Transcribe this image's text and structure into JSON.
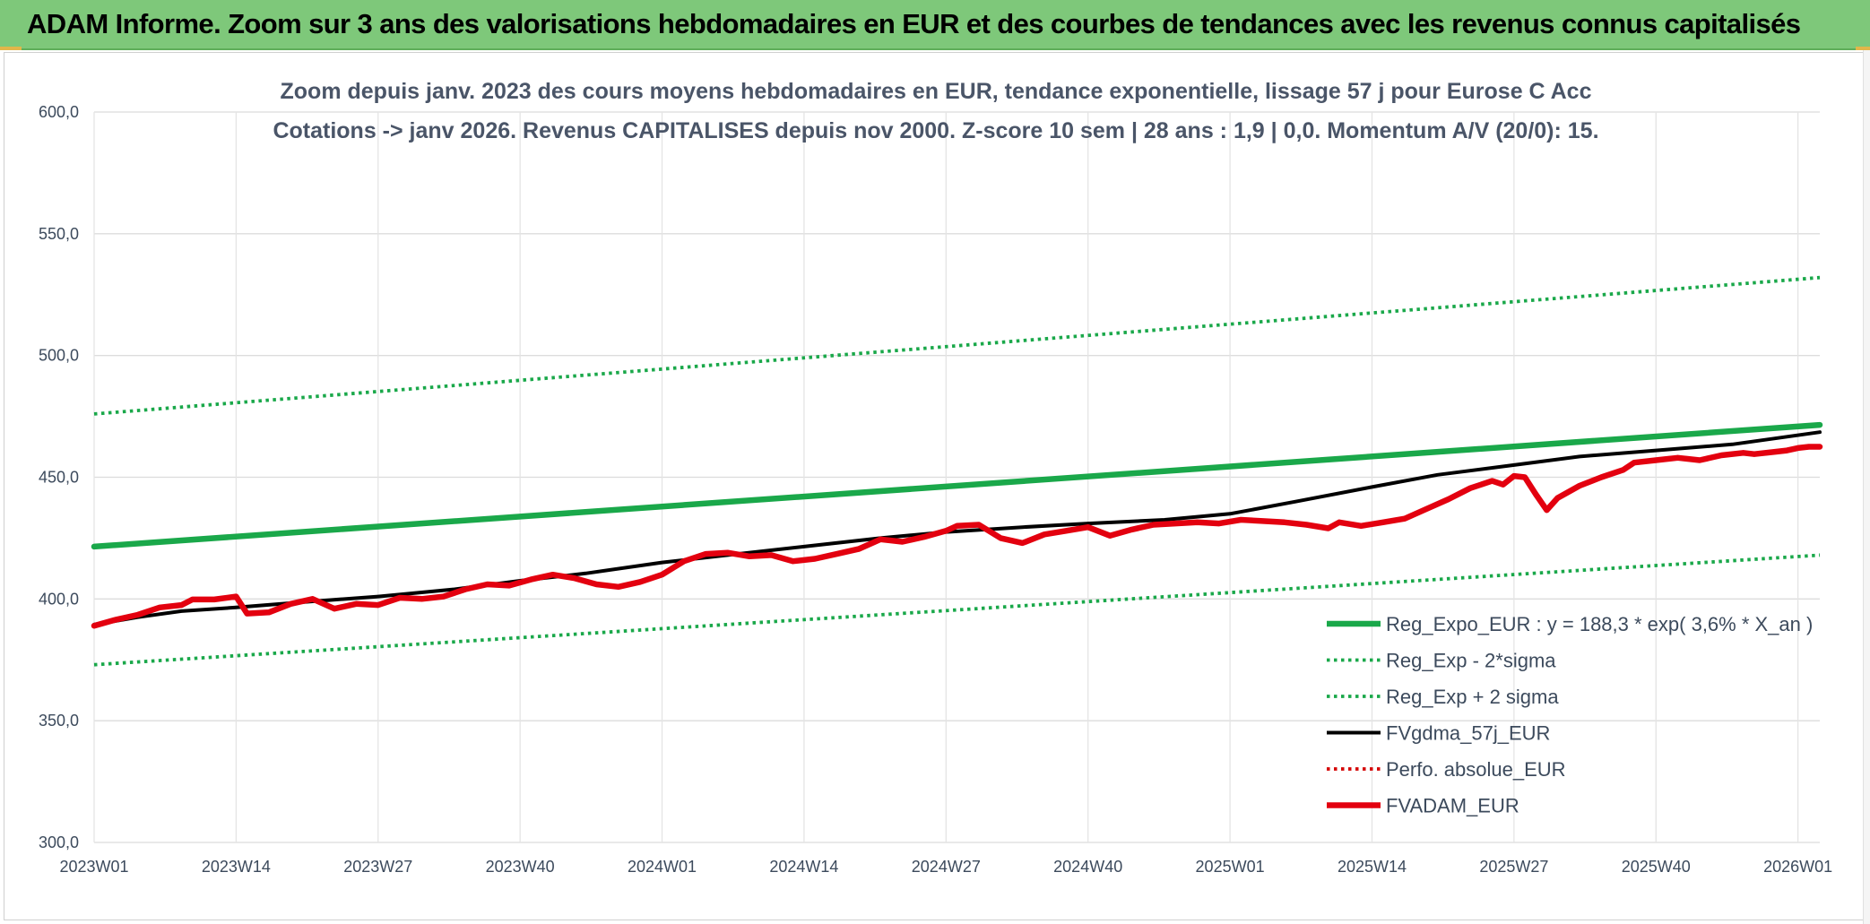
{
  "header": {
    "title": "ADAM Informe. Zoom sur 3 ans des valorisations hebdomadaires en EUR et des courbes de tendances avec les revenus connus capitalisés"
  },
  "chart_data": {
    "type": "line",
    "title_line1": "Zoom depuis janv. 2023 des cours moyens hebdomadaires en EUR, tendance exponentielle, lissage 57 j pour Eurose C Acc",
    "title_line2": "Cotations -> janv 2026. Revenus CAPITALISES depuis nov 2000. Z-score 10 sem | 28 ans : 1,9 | 0,0. Momentum A/V (20/0): 15.",
    "ylim": [
      300,
      600
    ],
    "yticks": [
      "300,0",
      "350,0",
      "400,0",
      "450,0",
      "500,0",
      "550,0",
      "600,0"
    ],
    "ytick_values": [
      300,
      350,
      400,
      450,
      500,
      550,
      600
    ],
    "x_count": 159,
    "x_ticks": [
      {
        "index": 0,
        "label": "2023W01"
      },
      {
        "index": 13,
        "label": "2023W14"
      },
      {
        "index": 26,
        "label": "2023W27"
      },
      {
        "index": 39,
        "label": "2023W40"
      },
      {
        "index": 52,
        "label": "2024W01"
      },
      {
        "index": 65,
        "label": "2024W14"
      },
      {
        "index": 78,
        "label": "2024W27"
      },
      {
        "index": 91,
        "label": "2024W40"
      },
      {
        "index": 104,
        "label": "2025W01"
      },
      {
        "index": 117,
        "label": "2025W14"
      },
      {
        "index": 130,
        "label": "2025W27"
      },
      {
        "index": 143,
        "label": "2025W40"
      },
      {
        "index": 156,
        "label": "2026W01"
      }
    ],
    "grid": true,
    "legend_position": "bottom-right",
    "series": [
      {
        "name": "Reg_Expo_EUR : y = 188,3 * exp( 3,6% *  X_an )",
        "color": "#1aa84a",
        "style": "solid-thick",
        "points": [
          [
            0,
            421.5
          ],
          [
            158,
            471.5
          ]
        ]
      },
      {
        "name": "Reg_Exp - 2*sigma",
        "color": "#1aa84a",
        "style": "dotted",
        "points": [
          [
            0,
            373.0
          ],
          [
            158,
            418.0
          ]
        ]
      },
      {
        "name": "Reg_Exp + 2 sigma",
        "color": "#1aa84a",
        "style": "dotted",
        "points": [
          [
            0,
            476.0
          ],
          [
            158,
            532.0
          ]
        ]
      },
      {
        "name": "FVgdma_57j_EUR",
        "color": "#000000",
        "style": "solid",
        "points": [
          [
            0,
            389.5
          ],
          [
            4,
            392.5
          ],
          [
            8,
            395.0
          ],
          [
            13,
            396.5
          ],
          [
            20,
            399.0
          ],
          [
            26,
            401.0
          ],
          [
            33,
            404.0
          ],
          [
            39,
            407.5
          ],
          [
            45,
            410.5
          ],
          [
            52,
            415.0
          ],
          [
            58,
            418.0
          ],
          [
            65,
            421.5
          ],
          [
            72,
            425.0
          ],
          [
            78,
            427.5
          ],
          [
            85,
            429.5
          ],
          [
            91,
            431.0
          ],
          [
            98,
            432.5
          ],
          [
            104,
            435.0
          ],
          [
            110,
            440.0
          ],
          [
            117,
            446.0
          ],
          [
            123,
            451.0
          ],
          [
            130,
            455.0
          ],
          [
            136,
            458.5
          ],
          [
            143,
            461.0
          ],
          [
            150,
            463.5
          ],
          [
            158,
            468.5
          ]
        ]
      },
      {
        "name": "Perfo. absolue_EUR",
        "color": "#d40000",
        "style": "dotted",
        "points": []
      },
      {
        "name": "FVADAM_EUR",
        "color": "#e3000f",
        "style": "solid-thick",
        "points": [
          [
            0,
            389.0
          ],
          [
            2,
            391.5
          ],
          [
            4,
            393.5
          ],
          [
            6,
            396.5
          ],
          [
            8,
            397.5
          ],
          [
            9,
            399.8
          ],
          [
            11,
            399.8
          ],
          [
            13,
            401.0
          ],
          [
            14,
            394.0
          ],
          [
            16,
            394.5
          ],
          [
            18,
            398.0
          ],
          [
            20,
            400.0
          ],
          [
            22,
            396.0
          ],
          [
            24,
            398.0
          ],
          [
            26,
            397.5
          ],
          [
            28,
            400.5
          ],
          [
            30,
            400.0
          ],
          [
            32,
            401.0
          ],
          [
            34,
            404.0
          ],
          [
            36,
            406.0
          ],
          [
            38,
            405.5
          ],
          [
            40,
            408.0
          ],
          [
            42,
            410.0
          ],
          [
            44,
            408.5
          ],
          [
            46,
            406.0
          ],
          [
            48,
            405.0
          ],
          [
            50,
            407.0
          ],
          [
            52,
            410.0
          ],
          [
            54,
            415.5
          ],
          [
            56,
            418.5
          ],
          [
            58,
            419.0
          ],
          [
            60,
            417.5
          ],
          [
            62,
            418.0
          ],
          [
            64,
            415.5
          ],
          [
            66,
            416.5
          ],
          [
            68,
            418.5
          ],
          [
            70,
            420.5
          ],
          [
            72,
            424.5
          ],
          [
            74,
            423.5
          ],
          [
            76,
            425.5
          ],
          [
            78,
            428.0
          ],
          [
            79,
            430.0
          ],
          [
            81,
            430.5
          ],
          [
            83,
            425.0
          ],
          [
            85,
            423.0
          ],
          [
            87,
            426.5
          ],
          [
            89,
            428.0
          ],
          [
            91,
            429.5
          ],
          [
            93,
            426.0
          ],
          [
            95,
            428.5
          ],
          [
            97,
            430.5
          ],
          [
            99,
            431.0
          ],
          [
            101,
            431.5
          ],
          [
            103,
            431.0
          ],
          [
            105,
            432.5
          ],
          [
            107,
            432.0
          ],
          [
            109,
            431.5
          ],
          [
            111,
            430.5
          ],
          [
            113,
            429.0
          ],
          [
            114,
            431.5
          ],
          [
            116,
            430.0
          ],
          [
            118,
            431.5
          ],
          [
            120,
            433.0
          ],
          [
            122,
            437.0
          ],
          [
            124,
            441.0
          ],
          [
            126,
            445.5
          ],
          [
            128,
            448.5
          ],
          [
            129,
            447.0
          ],
          [
            130,
            450.5
          ],
          [
            131,
            450.0
          ],
          [
            132,
            443.0
          ],
          [
            133,
            436.5
          ],
          [
            134,
            441.5
          ],
          [
            136,
            446.5
          ],
          [
            138,
            450.0
          ],
          [
            140,
            453.0
          ],
          [
            141,
            456.0
          ],
          [
            143,
            457.0
          ],
          [
            145,
            458.0
          ],
          [
            147,
            457.0
          ],
          [
            149,
            459.0
          ],
          [
            151,
            460.0
          ],
          [
            152,
            459.5
          ],
          [
            154,
            460.5
          ],
          [
            155,
            461.0
          ],
          [
            156,
            462.0
          ],
          [
            157,
            462.5
          ],
          [
            158,
            462.5
          ]
        ]
      }
    ]
  }
}
